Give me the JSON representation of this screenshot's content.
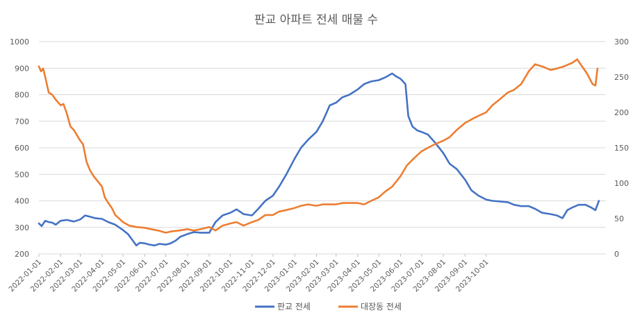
{
  "chart_data": {
    "type": "line",
    "title": "판교 아파트 전세 매물 수",
    "xlabel": "",
    "ylabel": "",
    "y_left": {
      "range": [
        200,
        1000
      ],
      "ticks": [
        200,
        300,
        400,
        500,
        600,
        700,
        800,
        900,
        1000
      ]
    },
    "y_right": {
      "range": [
        0,
        300
      ],
      "ticks": [
        0,
        50,
        100,
        150,
        200,
        250,
        300
      ]
    },
    "x_ticks": [
      "2022-01-01",
      "2022-02-01",
      "2022-03-01",
      "2022-04-01",
      "2022-05-01",
      "2022-06-01",
      "2022-07-01",
      "2022-08-01",
      "2022-09-01",
      "2022-10-01",
      "2022-11-01",
      "2022-12-01",
      "2023-01-01",
      "2023-02-01",
      "2023-03-01",
      "2023-04-01",
      "2023-05-01",
      "2023-06-01",
      "2023-07-01",
      "2023-08-01",
      "2023-09-01",
      "2023-10-01"
    ],
    "grid": true,
    "legend_position": "bottom",
    "series": [
      {
        "name": "판교 전세",
        "axis": "left",
        "color": "#4472C4",
        "points": [
          [
            "2022-01-01",
            315
          ],
          [
            "2022-01-05",
            305
          ],
          [
            "2022-01-10",
            325
          ],
          [
            "2022-01-15",
            320
          ],
          [
            "2022-01-20",
            318
          ],
          [
            "2022-01-25",
            310
          ],
          [
            "2022-02-01",
            325
          ],
          [
            "2022-02-10",
            328
          ],
          [
            "2022-02-20",
            322
          ],
          [
            "2022-03-01",
            330
          ],
          [
            "2022-03-08",
            345
          ],
          [
            "2022-03-15",
            340
          ],
          [
            "2022-03-22",
            335
          ],
          [
            "2022-04-01",
            332
          ],
          [
            "2022-04-10",
            320
          ],
          [
            "2022-04-20",
            310
          ],
          [
            "2022-05-01",
            290
          ],
          [
            "2022-05-08",
            275
          ],
          [
            "2022-05-15",
            250
          ],
          [
            "2022-05-20",
            232
          ],
          [
            "2022-05-25",
            242
          ],
          [
            "2022-06-01",
            240
          ],
          [
            "2022-06-08",
            235
          ],
          [
            "2022-06-15",
            232
          ],
          [
            "2022-06-22",
            238
          ],
          [
            "2022-07-01",
            235
          ],
          [
            "2022-07-08",
            240
          ],
          [
            "2022-07-15",
            250
          ],
          [
            "2022-07-22",
            265
          ],
          [
            "2022-08-01",
            275
          ],
          [
            "2022-08-10",
            282
          ],
          [
            "2022-08-20",
            280
          ],
          [
            "2022-09-01",
            280
          ],
          [
            "2022-09-10",
            320
          ],
          [
            "2022-09-20",
            345
          ],
          [
            "2022-10-01",
            355
          ],
          [
            "2022-10-10",
            368
          ],
          [
            "2022-10-20",
            350
          ],
          [
            "2022-11-01",
            345
          ],
          [
            "2022-11-10",
            370
          ],
          [
            "2022-11-20",
            400
          ],
          [
            "2022-12-01",
            420
          ],
          [
            "2022-12-10",
            455
          ],
          [
            "2022-12-20",
            500
          ],
          [
            "2023-01-01",
            560
          ],
          [
            "2023-01-10",
            600
          ],
          [
            "2023-01-20",
            630
          ],
          [
            "2023-02-01",
            660
          ],
          [
            "2023-02-10",
            700
          ],
          [
            "2023-02-20",
            760
          ],
          [
            "2023-03-01",
            770
          ],
          [
            "2023-03-10",
            790
          ],
          [
            "2023-03-20",
            800
          ],
          [
            "2023-04-01",
            820
          ],
          [
            "2023-04-10",
            840
          ],
          [
            "2023-04-20",
            850
          ],
          [
            "2023-05-01",
            855
          ],
          [
            "2023-05-10",
            865
          ],
          [
            "2023-05-20",
            880
          ],
          [
            "2023-05-25",
            870
          ],
          [
            "2023-06-01",
            860
          ],
          [
            "2023-06-08",
            840
          ],
          [
            "2023-06-12",
            720
          ],
          [
            "2023-06-18",
            680
          ],
          [
            "2023-06-25",
            665
          ],
          [
            "2023-07-01",
            660
          ],
          [
            "2023-07-10",
            650
          ],
          [
            "2023-07-20",
            620
          ],
          [
            "2023-08-01",
            580
          ],
          [
            "2023-08-10",
            540
          ],
          [
            "2023-08-20",
            520
          ],
          [
            "2023-09-01",
            480
          ],
          [
            "2023-09-10",
            440
          ],
          [
            "2023-09-20",
            420
          ],
          [
            "2023-10-01",
            405
          ],
          [
            "2023-10-10",
            400
          ],
          [
            "2023-10-20",
            398
          ],
          [
            "2023-11-01",
            395
          ],
          [
            "2023-11-10",
            385
          ],
          [
            "2023-11-20",
            380
          ],
          [
            "2023-12-01",
            380
          ],
          [
            "2023-12-10",
            370
          ],
          [
            "2023-12-20",
            355
          ],
          [
            "2024-01-01",
            350
          ],
          [
            "2024-01-10",
            345
          ],
          [
            "2024-01-18",
            335
          ],
          [
            "2024-01-25",
            365
          ],
          [
            "2024-02-01",
            375
          ],
          [
            "2024-02-10",
            385
          ],
          [
            "2024-02-20",
            385
          ],
          [
            "2024-02-28",
            375
          ],
          [
            "2024-03-05",
            365
          ],
          [
            "2024-03-10",
            400
          ]
        ]
      },
      {
        "name": "대장동 전세",
        "axis": "right",
        "color": "#ED7D31",
        "points": [
          [
            "2022-01-01",
            265
          ],
          [
            "2022-01-04",
            258
          ],
          [
            "2022-01-07",
            262
          ],
          [
            "2022-01-10",
            250
          ],
          [
            "2022-01-15",
            228
          ],
          [
            "2022-01-20",
            225
          ],
          [
            "2022-01-25",
            218
          ],
          [
            "2022-02-01",
            210
          ],
          [
            "2022-02-05",
            212
          ],
          [
            "2022-02-10",
            198
          ],
          [
            "2022-02-15",
            180
          ],
          [
            "2022-02-20",
            175
          ],
          [
            "2022-03-01",
            160
          ],
          [
            "2022-03-05",
            155
          ],
          [
            "2022-03-10",
            130
          ],
          [
            "2022-03-15",
            118
          ],
          [
            "2022-03-20",
            110
          ],
          [
            "2022-04-01",
            95
          ],
          [
            "2022-04-05",
            80
          ],
          [
            "2022-04-10",
            72
          ],
          [
            "2022-04-15",
            65
          ],
          [
            "2022-04-20",
            55
          ],
          [
            "2022-05-01",
            45
          ],
          [
            "2022-05-10",
            40
          ],
          [
            "2022-05-20",
            38
          ],
          [
            "2022-06-01",
            37
          ],
          [
            "2022-06-10",
            35
          ],
          [
            "2022-06-20",
            33
          ],
          [
            "2022-07-01",
            30
          ],
          [
            "2022-07-10",
            32
          ],
          [
            "2022-07-20",
            33
          ],
          [
            "2022-08-01",
            35
          ],
          [
            "2022-08-10",
            33
          ],
          [
            "2022-08-20",
            35
          ],
          [
            "2022-09-01",
            38
          ],
          [
            "2022-09-10",
            33
          ],
          [
            "2022-09-20",
            40
          ],
          [
            "2022-10-01",
            43
          ],
          [
            "2022-10-10",
            45
          ],
          [
            "2022-10-20",
            40
          ],
          [
            "2022-11-01",
            45
          ],
          [
            "2022-11-10",
            48
          ],
          [
            "2022-11-20",
            55
          ],
          [
            "2022-12-01",
            55
          ],
          [
            "2022-12-10",
            60
          ],
          [
            "2022-12-20",
            62
          ],
          [
            "2023-01-01",
            65
          ],
          [
            "2023-01-10",
            68
          ],
          [
            "2023-01-20",
            70
          ],
          [
            "2023-02-01",
            68
          ],
          [
            "2023-02-10",
            70
          ],
          [
            "2023-02-20",
            70
          ],
          [
            "2023-03-01",
            70
          ],
          [
            "2023-03-10",
            72
          ],
          [
            "2023-03-20",
            72
          ],
          [
            "2023-04-01",
            72
          ],
          [
            "2023-04-10",
            70
          ],
          [
            "2023-04-20",
            75
          ],
          [
            "2023-05-01",
            80
          ],
          [
            "2023-05-10",
            88
          ],
          [
            "2023-05-20",
            95
          ],
          [
            "2023-06-01",
            110
          ],
          [
            "2023-06-10",
            125
          ],
          [
            "2023-06-20",
            135
          ],
          [
            "2023-07-01",
            145
          ],
          [
            "2023-07-10",
            150
          ],
          [
            "2023-07-20",
            155
          ],
          [
            "2023-08-01",
            160
          ],
          [
            "2023-08-10",
            165
          ],
          [
            "2023-08-20",
            175
          ],
          [
            "2023-09-01",
            185
          ],
          [
            "2023-09-10",
            190
          ],
          [
            "2023-09-20",
            195
          ],
          [
            "2023-10-01",
            200
          ],
          [
            "2023-10-10",
            210
          ],
          [
            "2023-10-20",
            218
          ],
          [
            "2023-11-01",
            228
          ],
          [
            "2023-11-10",
            232
          ],
          [
            "2023-11-20",
            240
          ],
          [
            "2023-12-01",
            258
          ],
          [
            "2023-12-10",
            268
          ],
          [
            "2023-12-20",
            265
          ],
          [
            "2024-01-01",
            260
          ],
          [
            "2024-01-10",
            262
          ],
          [
            "2024-01-20",
            265
          ],
          [
            "2024-02-01",
            270
          ],
          [
            "2024-02-08",
            275
          ],
          [
            "2024-02-15",
            265
          ],
          [
            "2024-02-22",
            255
          ],
          [
            "2024-03-01",
            240
          ],
          [
            "2024-03-05",
            238
          ],
          [
            "2024-03-08",
            262
          ]
        ]
      }
    ]
  }
}
